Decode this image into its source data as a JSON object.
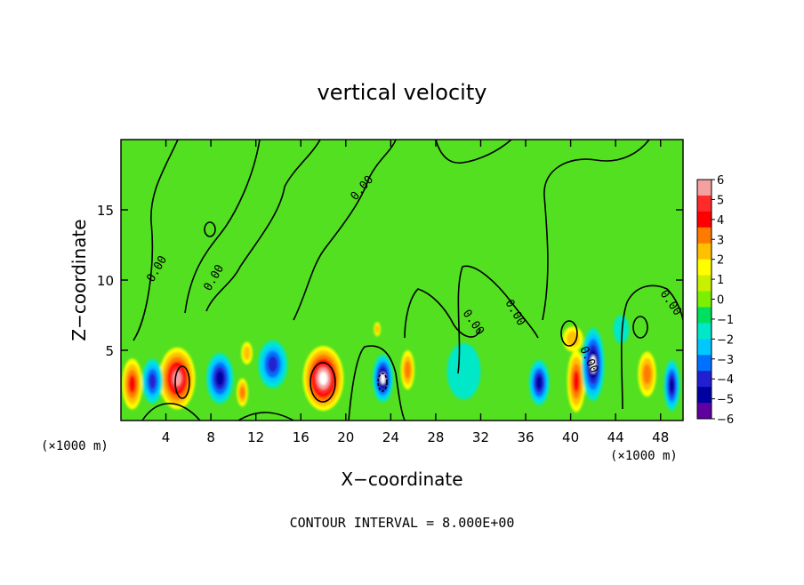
{
  "chart_data": {
    "type": "heatmap",
    "title": "vertical velocity",
    "xlabel": "X−coordinate",
    "ylabel": "Z−coordinate",
    "x_unit_left": "(×1000 m)",
    "x_unit_right": "(×1000 m)",
    "footer": "CONTOUR INTERVAL = 8.000E+00",
    "xlim": [
      0,
      50
    ],
    "ylim": [
      0,
      20
    ],
    "x_ticks": [
      4,
      8,
      12,
      16,
      20,
      24,
      28,
      32,
      36,
      40,
      44,
      48
    ],
    "x_tick_labels": [
      "4",
      "8",
      "12",
      "16",
      "20",
      "24",
      "28",
      "32",
      "36",
      "40",
      "44",
      "48"
    ],
    "y_ticks": [
      5,
      10,
      15
    ],
    "y_tick_labels": [
      "5",
      "10",
      "15"
    ],
    "contour_labels": [
      "0.00",
      "0.00",
      "0.00",
      "0.00",
      "0.00",
      "0.00",
      "0.00"
    ],
    "colorbar": {
      "min": -6,
      "max": 6,
      "tick_labels": [
        "6",
        "5",
        "4",
        "3",
        "2",
        "1",
        "0",
        "−1",
        "−2",
        "−3",
        "−4",
        "−5",
        "−6"
      ],
      "colors": [
        "#f4a0a0",
        "#ff2a2a",
        "#ff0000",
        "#ff7a00",
        "#ffc000",
        "#ffff00",
        "#c8f000",
        "#7cf000",
        "#00e060",
        "#00e8c8",
        "#00c8ff",
        "#0070ff",
        "#2020d0",
        "#0000a0",
        "#6000a0"
      ]
    },
    "features": [
      {
        "x": 1.0,
        "z": 2.6,
        "w": 7,
        "sx": 0.9,
        "sz": 1.8
      },
      {
        "x": 5.0,
        "z": 3.0,
        "w": 12,
        "sx": 1.6,
        "sz": 2.2
      },
      {
        "x": 2.8,
        "z": 2.8,
        "w": -6,
        "sx": 0.9,
        "sz": 1.6
      },
      {
        "x": 8.8,
        "z": 3.0,
        "w": -7,
        "sx": 1.2,
        "sz": 1.8
      },
      {
        "x": 10.8,
        "z": 2.0,
        "w": 6,
        "sx": 0.5,
        "sz": 1.0
      },
      {
        "x": 11.2,
        "z": 4.8,
        "w": 3,
        "sx": 0.5,
        "sz": 0.8
      },
      {
        "x": 13.5,
        "z": 4.0,
        "w": -6,
        "sx": 1.3,
        "sz": 1.7
      },
      {
        "x": 18.0,
        "z": 3.0,
        "w": 13,
        "sx": 1.8,
        "sz": 2.3
      },
      {
        "x": 23.3,
        "z": 3.0,
        "w": -9,
        "sx": 0.9,
        "sz": 1.7
      },
      {
        "x": 25.5,
        "z": 3.6,
        "w": 5,
        "sx": 0.6,
        "sz": 1.4
      },
      {
        "x": 22.8,
        "z": 6.5,
        "w": 3,
        "sx": 0.3,
        "sz": 0.5
      },
      {
        "x": 30.5,
        "z": 3.5,
        "w": -2,
        "sx": 1.5,
        "sz": 2.0
      },
      {
        "x": 37.2,
        "z": 2.7,
        "w": -7,
        "sx": 0.9,
        "sz": 1.6
      },
      {
        "x": 40.5,
        "z": 2.8,
        "w": 8,
        "sx": 0.8,
        "sz": 2.2
      },
      {
        "x": 40.2,
        "z": 5.8,
        "w": 3,
        "sx": 0.9,
        "sz": 0.9
      },
      {
        "x": 42.0,
        "z": 4.0,
        "w": -9,
        "sx": 1.0,
        "sz": 2.6
      },
      {
        "x": 46.8,
        "z": 3.3,
        "w": 5,
        "sx": 0.8,
        "sz": 1.6
      },
      {
        "x": 49.0,
        "z": 2.5,
        "w": -7,
        "sx": 0.7,
        "sz": 1.8
      },
      {
        "x": 44.5,
        "z": 6.5,
        "w": -2,
        "sx": 0.7,
        "sz": 1.0
      }
    ]
  }
}
